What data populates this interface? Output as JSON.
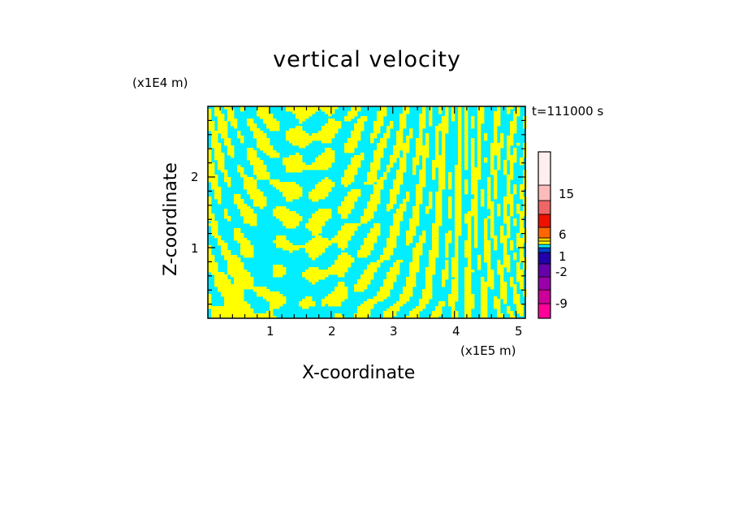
{
  "chart_data": {
    "type": "heatmap",
    "title": "vertical velocity",
    "xlabel": "X-coordinate",
    "ylabel": "Z-coordinate",
    "x_unit": "(x1E5 m)",
    "y_unit": "(x1E4 m)",
    "time_label": "t=111000 s",
    "xlim": [
      0,
      5.15
    ],
    "ylim": [
      0,
      3.0
    ],
    "x_ticks": [
      "1",
      "2",
      "3",
      "4",
      "5"
    ],
    "y_ticks": [
      "1",
      "2"
    ],
    "visible_colors": {
      "positive": "#ffff00",
      "negative": "#00eeff"
    },
    "colorbar": {
      "tick_labels": [
        "15",
        "6",
        "1",
        "-2",
        "-9"
      ],
      "levels": [
        {
          "color": "#ff0099"
        },
        {
          "color": "#cc0099"
        },
        {
          "color": "#9900aa"
        },
        {
          "color": "#6600aa"
        },
        {
          "color": "#2200aa"
        },
        {
          "color": "#0044cc"
        },
        {
          "color": "#00eeff"
        },
        {
          "color": "#ffff00"
        },
        {
          "color": "#ffcc00"
        },
        {
          "color": "#ff6600"
        },
        {
          "color": "#ee1100"
        },
        {
          "color": "#ee6666"
        },
        {
          "color": "#ffbbbb"
        },
        {
          "color": "#ffeeee"
        }
      ]
    }
  }
}
